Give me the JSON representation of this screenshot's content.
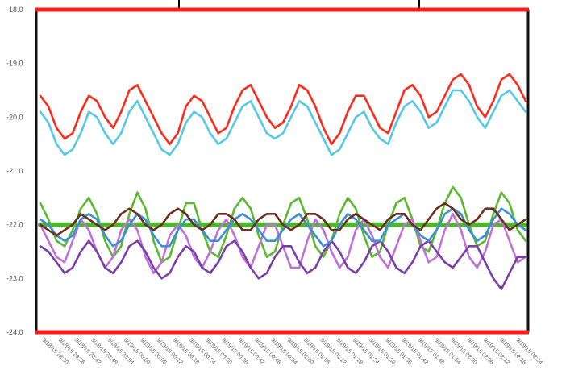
{
  "chart_data": {
    "type": "line",
    "title": "",
    "xlabel": "",
    "ylabel": "",
    "ylim": [
      -24.0,
      -18.0
    ],
    "yticks": [
      "-18.0",
      "-19.0",
      "-20.0",
      "-21.0",
      "-22.0",
      "-23.0",
      "-24.0"
    ],
    "grid": false,
    "legend": "none",
    "frame_colors": {
      "top": "#ff1a1a",
      "bottom": "#ff1a1a",
      "left": "#111111",
      "right": "#111111"
    },
    "x_tick_labels": [
      "9/18/15 23:30",
      "9/18/15 23:36",
      "9/18/15 23:42",
      "9/18/15 23:48",
      "9/18/15 23:54",
      "9/19/15 00:00",
      "9/19/15 00:06",
      "9/19/15 00:12",
      "9/19/15 00:18",
      "9/19/15 00:24",
      "9/19/15 00:30",
      "9/19/15 00:36",
      "9/19/15 00:42",
      "9/19/15 00:48",
      "9/19/15 00:54",
      "9/19/15 01:00",
      "9/19/15 01:06",
      "9/19/15 01:12",
      "9/19/15 01:18",
      "9/19/15 01:24",
      "9/19/15 01:30",
      "9/19/15 01:36",
      "9/19/15 01:42",
      "9/19/15 01:48",
      "9/19/15 01:54",
      "9/19/15 02:00",
      "9/19/15 02:06",
      "9/19/15 02:12",
      "9/19/15 02:18",
      "9/19/15 02:24"
    ],
    "x": [
      0,
      1,
      2,
      3,
      4,
      5,
      6,
      7,
      8,
      9,
      10,
      11,
      12,
      13,
      14,
      15,
      16,
      17,
      18,
      19,
      20,
      21,
      22,
      23,
      24,
      25,
      26,
      27,
      28,
      29,
      30,
      31,
      32,
      33,
      34,
      35,
      36,
      37,
      38,
      39,
      40,
      41,
      42,
      43,
      44,
      45,
      46,
      47,
      48,
      49,
      50,
      51,
      52,
      53,
      54,
      55,
      56,
      57,
      58,
      59,
      60
    ],
    "series": [
      {
        "color": "#ff2a1a",
        "values": [
          -19.6,
          -19.8,
          -20.2,
          -20.4,
          -20.3,
          -19.9,
          -19.6,
          -19.7,
          -20.0,
          -20.2,
          -19.9,
          -19.5,
          -19.4,
          -19.7,
          -20.0,
          -20.3,
          -20.5,
          -20.3,
          -19.8,
          -19.6,
          -19.7,
          -20.0,
          -20.3,
          -20.2,
          -19.8,
          -19.5,
          -19.4,
          -19.7,
          -20.0,
          -20.2,
          -20.1,
          -19.8,
          -19.4,
          -19.5,
          -19.8,
          -20.2,
          -20.5,
          -20.3,
          -19.9,
          -19.6,
          -19.6,
          -19.9,
          -20.2,
          -20.3,
          -19.9,
          -19.5,
          -19.4,
          -19.6,
          -20.0,
          -19.9,
          -19.6,
          -19.3,
          -19.2,
          -19.4,
          -19.8,
          -20.0,
          -19.7,
          -19.3,
          -19.2,
          -19.4,
          -19.7
        ]
      },
      {
        "color": "#55c8e8",
        "values": [
          -19.9,
          -20.1,
          -20.5,
          -20.7,
          -20.6,
          -20.3,
          -19.9,
          -20.0,
          -20.3,
          -20.5,
          -20.3,
          -19.9,
          -19.7,
          -20.0,
          -20.3,
          -20.6,
          -20.7,
          -20.5,
          -20.1,
          -19.9,
          -20.0,
          -20.3,
          -20.5,
          -20.4,
          -20.1,
          -19.8,
          -19.7,
          -20.0,
          -20.3,
          -20.4,
          -20.3,
          -20.0,
          -19.7,
          -19.8,
          -20.1,
          -20.4,
          -20.7,
          -20.6,
          -20.3,
          -20.0,
          -19.9,
          -20.2,
          -20.4,
          -20.5,
          -20.1,
          -19.8,
          -19.7,
          -19.9,
          -20.2,
          -20.1,
          -19.8,
          -19.5,
          -19.5,
          -19.7,
          -20.0,
          -20.2,
          -19.9,
          -19.6,
          -19.5,
          -19.7,
          -19.9
        ]
      },
      {
        "color": "#5ab82e",
        "values": [
          -21.6,
          -21.9,
          -22.3,
          -22.4,
          -22.1,
          -21.7,
          -21.5,
          -21.8,
          -22.3,
          -22.6,
          -22.4,
          -21.8,
          -21.4,
          -21.7,
          -22.3,
          -22.7,
          -22.6,
          -22.1,
          -21.6,
          -21.6,
          -22.1,
          -22.5,
          -22.6,
          -22.2,
          -21.7,
          -21.5,
          -21.7,
          -22.2,
          -22.6,
          -22.5,
          -22.0,
          -21.6,
          -21.5,
          -21.9,
          -22.4,
          -22.6,
          -22.3,
          -21.8,
          -21.5,
          -21.7,
          -22.2,
          -22.6,
          -22.5,
          -22.0,
          -21.6,
          -21.5,
          -21.9,
          -22.4,
          -22.5,
          -22.1,
          -21.6,
          -21.3,
          -21.5,
          -22.0,
          -22.4,
          -22.3,
          -21.8,
          -21.4,
          -21.6,
          -22.1,
          -22.3
        ]
      },
      {
        "color": "#3a8fd8",
        "values": [
          -21.9,
          -22.0,
          -22.2,
          -22.3,
          -22.2,
          -21.9,
          -21.8,
          -21.9,
          -22.2,
          -22.4,
          -22.3,
          -22.0,
          -21.8,
          -21.9,
          -22.2,
          -22.4,
          -22.4,
          -22.1,
          -21.9,
          -21.9,
          -22.1,
          -22.3,
          -22.3,
          -22.1,
          -21.9,
          -21.8,
          -21.9,
          -22.1,
          -22.3,
          -22.3,
          -22.1,
          -21.9,
          -21.8,
          -22.0,
          -22.2,
          -22.4,
          -22.3,
          -22.0,
          -21.8,
          -21.9,
          -22.1,
          -22.3,
          -22.3,
          -22.0,
          -21.9,
          -21.8,
          -22.0,
          -22.2,
          -22.3,
          -22.1,
          -21.8,
          -21.7,
          -21.8,
          -22.1,
          -22.3,
          -22.2,
          -21.9,
          -21.7,
          -21.8,
          -22.0,
          -22.1
        ]
      },
      {
        "color": "#c070d8",
        "values": [
          -22.0,
          -22.3,
          -22.6,
          -22.7,
          -22.3,
          -21.9,
          -22.1,
          -22.5,
          -22.8,
          -22.6,
          -22.1,
          -21.9,
          -22.1,
          -22.6,
          -22.9,
          -22.7,
          -22.2,
          -22.0,
          -22.2,
          -22.6,
          -22.8,
          -22.5,
          -22.1,
          -21.9,
          -22.2,
          -22.6,
          -22.8,
          -22.4,
          -22.0,
          -22.0,
          -22.4,
          -22.8,
          -22.8,
          -22.3,
          -21.9,
          -22.1,
          -22.5,
          -22.8,
          -22.6,
          -22.1,
          -21.9,
          -22.2,
          -22.6,
          -22.8,
          -22.4,
          -22.0,
          -21.9,
          -22.3,
          -22.7,
          -22.6,
          -22.1,
          -21.8,
          -22.1,
          -22.6,
          -22.8,
          -22.5,
          -22.0,
          -21.9,
          -22.3,
          -22.7,
          -22.6
        ]
      },
      {
        "color": "#7a3ea8",
        "values": [
          -22.4,
          -22.5,
          -22.7,
          -22.9,
          -22.8,
          -22.5,
          -22.3,
          -22.5,
          -22.8,
          -22.9,
          -22.7,
          -22.4,
          -22.3,
          -22.5,
          -22.8,
          -23.0,
          -22.9,
          -22.6,
          -22.4,
          -22.5,
          -22.8,
          -22.9,
          -22.7,
          -22.4,
          -22.3,
          -22.5,
          -22.8,
          -23.0,
          -22.9,
          -22.6,
          -22.4,
          -22.4,
          -22.7,
          -22.9,
          -22.8,
          -22.5,
          -22.3,
          -22.5,
          -22.8,
          -22.9,
          -22.7,
          -22.4,
          -22.3,
          -22.5,
          -22.8,
          -22.9,
          -22.7,
          -22.4,
          -22.3,
          -22.5,
          -22.7,
          -22.8,
          -22.6,
          -22.4,
          -22.4,
          -22.7,
          -23.0,
          -23.2,
          -22.9,
          -22.6,
          -22.6
        ]
      },
      {
        "color": "#6b2f1e",
        "values": [
          -22.0,
          -22.1,
          -22.2,
          -22.1,
          -22.0,
          -21.8,
          -21.9,
          -22.0,
          -22.1,
          -22.0,
          -21.8,
          -21.7,
          -21.8,
          -22.0,
          -22.1,
          -22.0,
          -21.8,
          -21.7,
          -21.8,
          -22.0,
          -22.1,
          -22.0,
          -21.8,
          -21.8,
          -21.9,
          -22.1,
          -22.1,
          -21.9,
          -21.8,
          -21.8,
          -22.0,
          -22.1,
          -22.0,
          -21.8,
          -21.8,
          -21.9,
          -22.1,
          -22.1,
          -21.9,
          -21.8,
          -21.9,
          -22.0,
          -22.1,
          -21.9,
          -21.8,
          -21.8,
          -22.0,
          -22.1,
          -21.9,
          -21.7,
          -21.6,
          -21.7,
          -21.9,
          -22.0,
          -21.9,
          -21.7,
          -21.7,
          -21.9,
          -22.1,
          -22.0,
          -21.9
        ]
      },
      {
        "color": "#4fb52f",
        "values": [
          -22.0,
          -22.0,
          -22.0,
          -22.0,
          -22.0,
          -22.0,
          -22.0,
          -22.0,
          -22.0,
          -22.0,
          -22.0,
          -22.0,
          -22.0,
          -22.0,
          -22.0,
          -22.0,
          -22.0,
          -22.0,
          -22.0,
          -22.0,
          -22.0,
          -22.0,
          -22.0,
          -22.0,
          -22.0,
          -22.0,
          -22.0,
          -22.0,
          -22.0,
          -22.0,
          -22.0,
          -22.0,
          -22.0,
          -22.0,
          -22.0,
          -22.0,
          -22.0,
          -22.0,
          -22.0,
          -22.0,
          -22.0,
          -22.0,
          -22.0,
          -22.0,
          -22.0,
          -22.0,
          -22.0,
          -22.0,
          -22.0,
          -22.0,
          -22.0,
          -22.0,
          -22.0,
          -22.0,
          -22.0,
          -22.0,
          -22.0,
          -22.0,
          -22.0,
          -22.0,
          -22.0
        ]
      }
    ]
  }
}
